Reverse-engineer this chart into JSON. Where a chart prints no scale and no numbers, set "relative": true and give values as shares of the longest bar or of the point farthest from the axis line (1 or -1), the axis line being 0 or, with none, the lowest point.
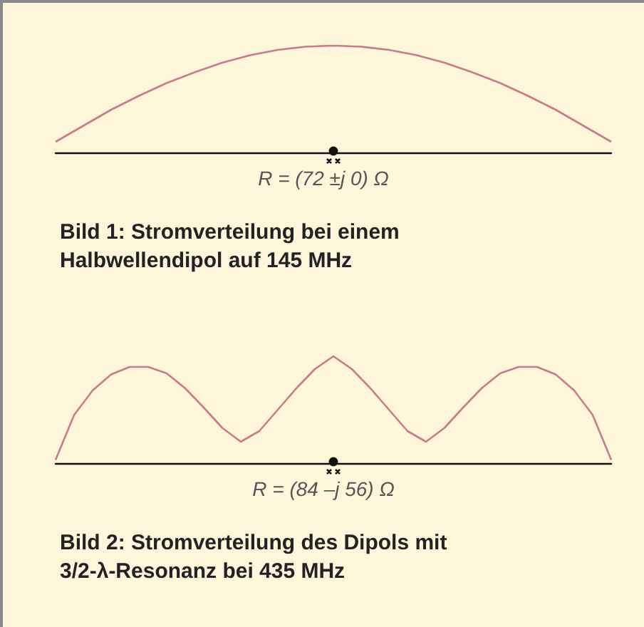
{
  "chart_data": [
    {
      "type": "line",
      "relative": true,
      "title": "Bild 1: Stromverteilung bei einem Halbwellendipol auf 145 MHz",
      "annotations": [
        "R = (72 ±j 0) Ω"
      ],
      "marker": "none",
      "color": "#c97a8c",
      "categories": [
        null,
        null,
        null,
        null,
        null,
        null,
        null,
        null,
        null,
        null,
        null,
        null,
        null,
        null,
        null,
        null,
        null,
        null,
        null,
        null,
        null
      ],
      "values": [
        0.1,
        0.25,
        0.4,
        0.53,
        0.65,
        0.75,
        0.84,
        0.91,
        0.96,
        0.99,
        1.0,
        0.99,
        0.96,
        0.91,
        0.84,
        0.75,
        0.65,
        0.53,
        0.4,
        0.25,
        0.1
      ]
    },
    {
      "type": "line",
      "relative": true,
      "title": "Bild 2: Stromverteilung des Dipols mit 3/2-λ-Resonanz bei 435 MHz",
      "annotations": [
        "R = (84 –j 56) Ω"
      ],
      "marker": "none",
      "color": "#c97a8c",
      "categories": [
        null,
        null,
        null,
        null,
        null,
        null,
        null,
        null,
        null,
        null,
        null,
        null,
        null,
        null,
        null,
        null,
        null,
        null,
        null,
        null,
        null,
        null,
        null,
        null,
        null,
        null,
        null,
        null,
        null,
        null,
        null
      ],
      "values": [
        0.03,
        0.45,
        0.68,
        0.83,
        0.9,
        0.9,
        0.84,
        0.7,
        0.52,
        0.33,
        0.2,
        0.3,
        0.5,
        0.7,
        0.88,
        1.0,
        0.88,
        0.7,
        0.5,
        0.3,
        0.2,
        0.33,
        0.52,
        0.7,
        0.84,
        0.9,
        0.9,
        0.83,
        0.68,
        0.45,
        0.03
      ]
    }
  ]
}
